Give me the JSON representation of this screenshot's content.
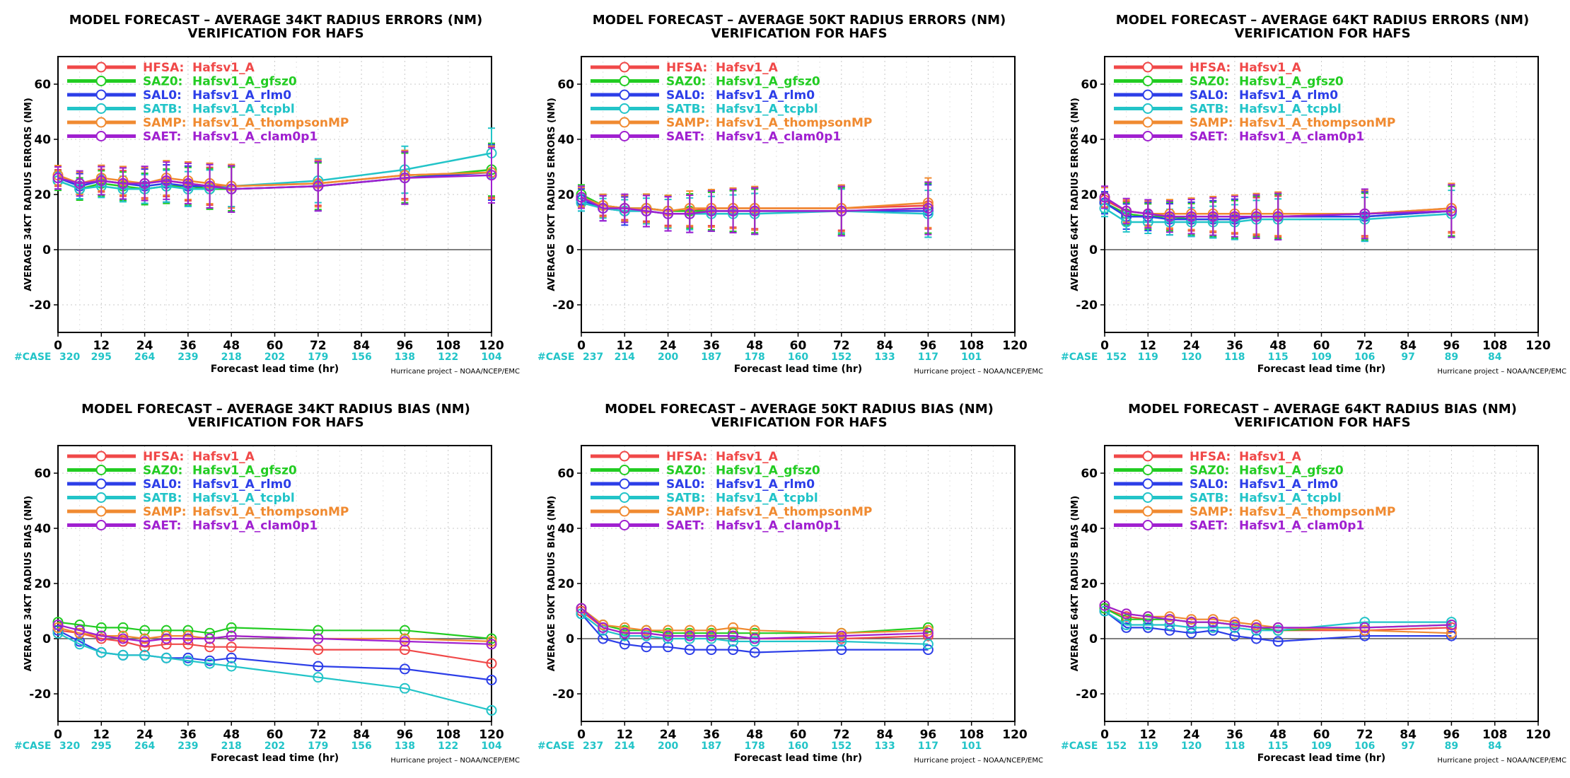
{
  "styles": {
    "HFSA": {
      "color": "#f04848"
    },
    "SAZ0": {
      "color": "#22cc22"
    },
    "SAL0": {
      "color": "#2c3ee8"
    },
    "SATB": {
      "color": "#22c4c8"
    },
    "SAMP": {
      "color": "#f08a30"
    },
    "SAET": {
      "color": "#a020d0"
    }
  },
  "legend": [
    {
      "id": "HFSA",
      "code": "HFSA:",
      "label": "Hafsv1_A"
    },
    {
      "id": "SAZ0",
      "code": "SAZ0:",
      "label": "Hafsv1_A_gfsz0"
    },
    {
      "id": "SAL0",
      "code": "SAL0:",
      "label": "Hafsv1_A_rlm0"
    },
    {
      "id": "SATB",
      "code": "SATB:",
      "label": "Hafsv1_A_tcpbl"
    },
    {
      "id": "SAMP",
      "code": "SAMP:",
      "label": "Hafsv1_A_thompsonMP"
    },
    {
      "id": "SAET",
      "code": "SAET:",
      "label": "Hafsv1_A_clam0p1"
    }
  ],
  "xlabel": "Forecast lead time (hr)",
  "credit": "Hurricane project – NOAA/NCEP/EMC",
  "case_label": "#CASE",
  "chart_data": [
    {
      "type": "line",
      "title": "MODEL FORECAST – AVERAGE 34KT RADIUS ERRORS (NM)",
      "subtitle": "VERIFICATION FOR HAFS",
      "ylabel": "AVERAGE 34KT RADIUS ERRORS (NM)",
      "xlabel": "Forecast lead time (hr)",
      "xlim": [
        0,
        120
      ],
      "ylim": [
        -30,
        70
      ],
      "xticks": [
        0,
        12,
        24,
        36,
        48,
        60,
        72,
        84,
        96,
        108,
        120
      ],
      "yticks": [
        -20,
        0,
        20,
        40,
        60
      ],
      "grid": true,
      "legend_position": "top-left",
      "error_bars": true,
      "cases": [
        "320",
        "295",
        "264",
        "239",
        "218",
        "202",
        "179",
        "156",
        "138",
        "122",
        "104"
      ],
      "x": [
        0,
        6,
        12,
        18,
        24,
        30,
        36,
        42,
        48,
        72,
        96,
        120
      ],
      "series": [
        {
          "name": "HFSA",
          "values": [
            26,
            24,
            25,
            24,
            24,
            25,
            24,
            23,
            23,
            24,
            27,
            28
          ]
        },
        {
          "name": "SAZ0",
          "values": [
            25,
            22,
            24,
            23,
            22,
            23,
            23,
            22,
            22,
            23,
            26,
            29
          ]
        },
        {
          "name": "SAL0",
          "values": [
            26,
            23,
            25,
            24,
            23,
            24,
            23,
            23,
            22,
            23,
            26,
            28
          ]
        },
        {
          "name": "SATB",
          "values": [
            25,
            22,
            23,
            22,
            22,
            23,
            22,
            22,
            23,
            25,
            29,
            35
          ]
        },
        {
          "name": "SAMP",
          "values": [
            27,
            24,
            26,
            25,
            24,
            26,
            25,
            24,
            23,
            24,
            27,
            28
          ]
        },
        {
          "name": "SAET",
          "values": [
            26,
            24,
            25,
            24,
            24,
            25,
            24,
            23,
            22,
            23,
            26,
            27
          ]
        }
      ]
    },
    {
      "type": "line",
      "title": "MODEL FORECAST – AVERAGE 50KT RADIUS ERRORS (NM)",
      "subtitle": "VERIFICATION FOR HAFS",
      "ylabel": "AVERAGE 50KT RADIUS ERRORS (NM)",
      "xlabel": "Forecast lead time (hr)",
      "xlim": [
        0,
        120
      ],
      "ylim": [
        -30,
        70
      ],
      "xticks": [
        0,
        12,
        24,
        36,
        48,
        60,
        72,
        84,
        96,
        108,
        120
      ],
      "yticks": [
        -20,
        0,
        20,
        40,
        60
      ],
      "grid": true,
      "legend_position": "top-left",
      "error_bars": true,
      "cases": [
        "237",
        "214",
        "200",
        "187",
        "178",
        "160",
        "152",
        "133",
        "117",
        "101",
        ""
      ],
      "x": [
        0,
        6,
        12,
        18,
        24,
        30,
        36,
        42,
        48,
        72,
        96
      ],
      "series": [
        {
          "name": "HFSA",
          "values": [
            19,
            16,
            15,
            15,
            14,
            14,
            15,
            15,
            15,
            15,
            16
          ]
        },
        {
          "name": "SAZ0",
          "values": [
            20,
            16,
            15,
            15,
            14,
            14,
            14,
            14,
            14,
            14,
            15
          ]
        },
        {
          "name": "SAL0",
          "values": [
            18,
            15,
            14,
            14,
            13,
            13,
            14,
            14,
            14,
            14,
            14
          ]
        },
        {
          "name": "SATB",
          "values": [
            17,
            15,
            14,
            14,
            13,
            13,
            13,
            13,
            13,
            14,
            13
          ]
        },
        {
          "name": "SAMP",
          "values": [
            19,
            16,
            15,
            15,
            14,
            15,
            15,
            15,
            15,
            15,
            17
          ]
        },
        {
          "name": "SAET",
          "values": [
            19,
            15,
            15,
            14,
            13,
            13,
            14,
            14,
            14,
            14,
            15
          ]
        }
      ]
    },
    {
      "type": "line",
      "title": "MODEL FORECAST – AVERAGE 64KT RADIUS ERRORS (NM)",
      "subtitle": "VERIFICATION FOR HAFS",
      "ylabel": "AVERAGE 64KT RADIUS ERRORS (NM)",
      "xlabel": "Forecast lead time (hr)",
      "xlim": [
        0,
        120
      ],
      "ylim": [
        -30,
        70
      ],
      "xticks": [
        0,
        12,
        24,
        36,
        48,
        60,
        72,
        84,
        96,
        108,
        120
      ],
      "yticks": [
        -20,
        0,
        20,
        40,
        60
      ],
      "grid": true,
      "legend_position": "top-left",
      "error_bars": true,
      "cases": [
        "152",
        "119",
        "120",
        "118",
        "115",
        "109",
        "106",
        "97",
        "89",
        "84",
        ""
      ],
      "x": [
        0,
        6,
        12,
        18,
        24,
        30,
        36,
        42,
        48,
        72,
        96
      ],
      "series": [
        {
          "name": "HFSA",
          "values": [
            18,
            14,
            13,
            12,
            12,
            12,
            12,
            12,
            12,
            13,
            15
          ]
        },
        {
          "name": "SAZ0",
          "values": [
            17,
            13,
            12,
            12,
            11,
            11,
            11,
            12,
            12,
            12,
            14
          ]
        },
        {
          "name": "SAL0",
          "values": [
            17,
            12,
            12,
            11,
            11,
            11,
            11,
            12,
            12,
            12,
            14
          ]
        },
        {
          "name": "SATB",
          "values": [
            15,
            10,
            10,
            10,
            10,
            10,
            10,
            11,
            11,
            11,
            13
          ]
        },
        {
          "name": "SAMP",
          "values": [
            19,
            14,
            13,
            13,
            13,
            13,
            13,
            13,
            13,
            13,
            15
          ]
        },
        {
          "name": "SAET",
          "values": [
            19,
            14,
            13,
            12,
            12,
            12,
            12,
            12,
            12,
            13,
            14
          ]
        }
      ]
    },
    {
      "type": "line",
      "title": "MODEL FORECAST – AVERAGE 34KT RADIUS BIAS (NM)",
      "subtitle": "VERIFICATION FOR HAFS",
      "ylabel": "AVERAGE 34KT RADIUS BIAS (NM)",
      "xlabel": "Forecast lead time (hr)",
      "xlim": [
        0,
        120
      ],
      "ylim": [
        -30,
        70
      ],
      "xticks": [
        0,
        12,
        24,
        36,
        48,
        60,
        72,
        84,
        96,
        108,
        120
      ],
      "yticks": [
        -20,
        0,
        20,
        40,
        60
      ],
      "grid": true,
      "legend_position": "top-left",
      "error_bars": false,
      "cases": [
        "320",
        "295",
        "264",
        "239",
        "218",
        "202",
        "179",
        "156",
        "138",
        "122",
        "104"
      ],
      "x": [
        0,
        6,
        12,
        18,
        24,
        30,
        36,
        42,
        48,
        72,
        96,
        120
      ],
      "series": [
        {
          "name": "HFSA",
          "values": [
            3,
            2,
            0,
            -1,
            -3,
            -2,
            -2,
            -3,
            -3,
            -4,
            -4,
            -9
          ]
        },
        {
          "name": "SAZ0",
          "values": [
            6,
            5,
            4,
            4,
            3,
            3,
            3,
            2,
            4,
            3,
            3,
            0
          ]
        },
        {
          "name": "SAL0",
          "values": [
            3,
            -1,
            -5,
            -6,
            -6,
            -7,
            -7,
            -8,
            -7,
            -10,
            -11,
            -15
          ]
        },
        {
          "name": "SATB",
          "values": [
            2,
            -2,
            -5,
            -6,
            -6,
            -7,
            -8,
            -9,
            -10,
            -14,
            -18,
            -26
          ]
        },
        {
          "name": "SAMP",
          "values": [
            4,
            2,
            1,
            1,
            0,
            1,
            1,
            0,
            1,
            0,
            0,
            -1
          ]
        },
        {
          "name": "SAET",
          "values": [
            5,
            3,
            1,
            0,
            -1,
            0,
            0,
            0,
            1,
            0,
            -1,
            -2
          ]
        }
      ]
    },
    {
      "type": "line",
      "title": "MODEL FORECAST – AVERAGE 50KT RADIUS BIAS (NM)",
      "subtitle": "VERIFICATION FOR HAFS",
      "ylabel": "AVERAGE 50KT RADIUS BIAS (NM)",
      "xlabel": "Forecast lead time (hr)",
      "xlim": [
        0,
        120
      ],
      "ylim": [
        -30,
        70
      ],
      "xticks": [
        0,
        12,
        24,
        36,
        48,
        60,
        72,
        84,
        96,
        108,
        120
      ],
      "yticks": [
        -20,
        0,
        20,
        40,
        60
      ],
      "grid": true,
      "legend_position": "top-left",
      "error_bars": false,
      "cases": [
        "237",
        "214",
        "200",
        "187",
        "178",
        "160",
        "152",
        "133",
        "117",
        "101",
        ""
      ],
      "x": [
        0,
        6,
        12,
        18,
        24,
        30,
        36,
        42,
        48,
        72,
        96
      ],
      "series": [
        {
          "name": "HFSA",
          "values": [
            10,
            4,
            2,
            2,
            1,
            1,
            1,
            1,
            0,
            0,
            1
          ]
        },
        {
          "name": "SAZ0",
          "values": [
            11,
            5,
            3,
            3,
            2,
            2,
            2,
            2,
            2,
            2,
            4
          ]
        },
        {
          "name": "SAL0",
          "values": [
            9,
            0,
            -2,
            -3,
            -3,
            -4,
            -4,
            -4,
            -5,
            -4,
            -4
          ]
        },
        {
          "name": "SATB",
          "values": [
            9,
            3,
            1,
            1,
            0,
            0,
            0,
            -1,
            -1,
            -1,
            -2
          ]
        },
        {
          "name": "SAMP",
          "values": [
            11,
            5,
            4,
            3,
            3,
            3,
            3,
            4,
            3,
            2,
            3
          ]
        },
        {
          "name": "SAET",
          "values": [
            11,
            4,
            2,
            2,
            1,
            1,
            1,
            1,
            0,
            1,
            2
          ]
        }
      ]
    },
    {
      "type": "line",
      "title": "MODEL FORECAST – AVERAGE 64KT RADIUS BIAS (NM)",
      "subtitle": "VERIFICATION FOR HAFS",
      "ylabel": "AVERAGE 64KT RADIUS BIAS (NM)",
      "xlabel": "Forecast lead time (hr)",
      "xlim": [
        0,
        120
      ],
      "ylim": [
        -30,
        70
      ],
      "xticks": [
        0,
        12,
        24,
        36,
        48,
        60,
        72,
        84,
        96,
        108,
        120
      ],
      "yticks": [
        -20,
        0,
        20,
        40,
        60
      ],
      "grid": true,
      "legend_position": "top-left",
      "error_bars": false,
      "cases": [
        "152",
        "119",
        "120",
        "118",
        "115",
        "109",
        "106",
        "97",
        "89",
        "84",
        ""
      ],
      "x": [
        0,
        6,
        12,
        18,
        24,
        30,
        36,
        42,
        48,
        72,
        96
      ],
      "series": [
        {
          "name": "HFSA",
          "values": [
            11,
            8,
            7,
            7,
            6,
            6,
            5,
            4,
            3,
            3,
            4
          ]
        },
        {
          "name": "SAZ0",
          "values": [
            11,
            7,
            7,
            7,
            6,
            6,
            5,
            4,
            3,
            4,
            5
          ]
        },
        {
          "name": "SAL0",
          "values": [
            10,
            4,
            4,
            3,
            2,
            3,
            1,
            0,
            -1,
            1,
            1
          ]
        },
        {
          "name": "SATB",
          "values": [
            10,
            5,
            5,
            5,
            4,
            4,
            4,
            3,
            3,
            6,
            6
          ]
        },
        {
          "name": "SAMP",
          "values": [
            12,
            9,
            8,
            8,
            7,
            7,
            6,
            5,
            4,
            3,
            2
          ]
        },
        {
          "name": "SAET",
          "values": [
            12,
            9,
            8,
            7,
            6,
            6,
            5,
            4,
            4,
            4,
            5
          ]
        }
      ]
    }
  ]
}
